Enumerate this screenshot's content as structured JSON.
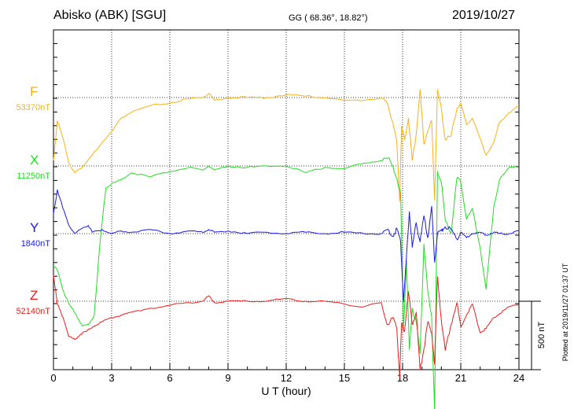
{
  "header": {
    "station": "Abisko (ABK)  [SGU]",
    "coords": "GG ( 68.36°,  18.82°)",
    "date": "2019/10/27"
  },
  "footer": {
    "plotted": "Plotted at 2019/11/27 01:37 UT"
  },
  "chart_data": {
    "type": "line",
    "title": "Abisko (ABK)  [SGU]",
    "xlabel": "U T (hour)",
    "xlim": [
      0,
      24
    ],
    "xticks": [
      "0",
      "3",
      "6",
      "9",
      "12",
      "15",
      "18",
      "21",
      "24"
    ],
    "grid": true,
    "scale_bar": {
      "label": "500 nT",
      "value_nT": 500
    },
    "series": [
      {
        "name": "F",
        "baseline_label": "53370nT",
        "baseline_nT": 53370,
        "color": "#f4b21a",
        "x": [
          0,
          0.2,
          0.5,
          0.8,
          1.1,
          1.4,
          1.7,
          2.0,
          2.5,
          3.0,
          3.5,
          4.0,
          5.0,
          6.0,
          7.0,
          7.7,
          8.0,
          8.3,
          9.0,
          10.0,
          11.0,
          12.0,
          13.0,
          14.0,
          15.0,
          16.0,
          16.9,
          17.2,
          17.5,
          17.7,
          17.85,
          17.95,
          18.1,
          18.3,
          18.5,
          18.7,
          18.9,
          19.1,
          19.3,
          19.5,
          19.65,
          19.8,
          20.0,
          20.2,
          20.5,
          20.8,
          21.0,
          21.3,
          21.6,
          22.0,
          22.3,
          22.7,
          23.0,
          23.5,
          24.0
        ],
        "values": [
          -460,
          -170,
          -300,
          -480,
          -550,
          -520,
          -470,
          -420,
          -330,
          -250,
          -150,
          -110,
          -60,
          -40,
          -10,
          0,
          30,
          -20,
          0,
          0,
          0,
          20,
          10,
          0,
          -20,
          -20,
          0,
          -40,
          -180,
          -320,
          -760,
          -210,
          -310,
          -150,
          -460,
          -270,
          60,
          -340,
          -240,
          -170,
          -750,
          60,
          -80,
          -310,
          -280,
          -80,
          -40,
          -200,
          -150,
          -300,
          -420,
          -330,
          -180,
          -110,
          -60
        ]
      },
      {
        "name": "X",
        "baseline_label": "11250nT",
        "baseline_nT": 11250,
        "color": "#22dd22",
        "x": [
          0,
          0.2,
          0.5,
          0.8,
          1.1,
          1.5,
          1.8,
          2.1,
          2.4,
          2.7,
          3.0,
          3.5,
          4.0,
          5.0,
          6.0,
          7.0,
          7.7,
          8.0,
          8.3,
          9.0,
          10.0,
          11.0,
          12.0,
          13.0,
          14.0,
          15.0,
          16.0,
          16.9,
          17.3,
          17.7,
          17.9,
          18.05,
          18.2,
          18.35,
          18.5,
          18.7,
          18.9,
          19.1,
          19.3,
          19.5,
          19.65,
          19.8,
          20.0,
          20.2,
          20.5,
          20.8,
          21.0,
          21.3,
          21.6,
          22.0,
          22.3,
          22.7,
          23.0,
          23.5,
          24.0
        ],
        "values": [
          -730,
          -760,
          -910,
          -1010,
          -1070,
          -1170,
          -1160,
          -1090,
          -560,
          -160,
          -130,
          -100,
          -50,
          -80,
          -40,
          -10,
          -30,
          0,
          -30,
          0,
          -10,
          0,
          0,
          -50,
          -10,
          -20,
          20,
          40,
          60,
          -90,
          -200,
          -1190,
          -690,
          -1340,
          -1040,
          -1140,
          -1370,
          -570,
          -920,
          -1100,
          -1790,
          -40,
          -120,
          -400,
          -490,
          -90,
          -120,
          -390,
          -310,
          -600,
          -900,
          -300,
          -100,
          -10,
          0
        ]
      },
      {
        "name": "Y",
        "baseline_label": "1840nT",
        "baseline_nT": 1840,
        "color": "#1a1ae6",
        "x": [
          0,
          0.2,
          0.5,
          0.8,
          1.1,
          1.5,
          1.8,
          2.0,
          2.5,
          3.0,
          3.5,
          4.0,
          5.0,
          6.0,
          7.0,
          7.7,
          8.0,
          8.3,
          9.0,
          10.0,
          11.0,
          12.0,
          13.0,
          14.0,
          15.0,
          16.0,
          16.9,
          17.2,
          17.5,
          17.7,
          17.9,
          18.05,
          18.2,
          18.35,
          18.5,
          18.7,
          18.9,
          19.1,
          19.3,
          19.5,
          19.65,
          19.8,
          20.0,
          20.2,
          20.5,
          20.8,
          21.0,
          21.3,
          21.6,
          22.0,
          22.3,
          22.7,
          23.0,
          23.5,
          24.0
        ],
        "values": [
          140,
          320,
          180,
          60,
          0,
          40,
          60,
          10,
          30,
          0,
          20,
          10,
          30,
          0,
          20,
          10,
          30,
          10,
          20,
          0,
          10,
          0,
          10,
          0,
          10,
          0,
          0,
          30,
          -20,
          40,
          -60,
          -500,
          -170,
          160,
          -100,
          80,
          -60,
          130,
          -30,
          200,
          -210,
          0,
          20,
          50,
          30,
          -40,
          10,
          -30,
          0,
          10,
          -10,
          10,
          0,
          0,
          20
        ]
      },
      {
        "name": "Z",
        "baseline_label": "52140nT",
        "baseline_nT": 52140,
        "color": "#ee1c1c",
        "x": [
          0,
          0.2,
          0.5,
          0.8,
          1.1,
          1.4,
          1.7,
          2.0,
          2.5,
          3.0,
          3.5,
          4.0,
          5.0,
          6.0,
          7.0,
          7.7,
          8.0,
          8.3,
          9.0,
          10.0,
          11.0,
          12.0,
          13.0,
          14.0,
          15.0,
          16.0,
          16.9,
          17.2,
          17.5,
          17.7,
          17.85,
          17.95,
          18.1,
          18.3,
          18.5,
          18.7,
          18.9,
          19.1,
          19.3,
          19.5,
          19.65,
          19.8,
          20.0,
          20.2,
          20.5,
          20.8,
          21.0,
          21.3,
          21.6,
          22.0,
          22.3,
          22.7,
          23.0,
          23.5,
          24.0
        ],
        "values": [
          190,
          -20,
          -120,
          -260,
          -280,
          -240,
          -220,
          -190,
          -150,
          -120,
          -100,
          -80,
          -50,
          -30,
          -10,
          0,
          40,
          -10,
          0,
          0,
          0,
          20,
          0,
          0,
          -20,
          -40,
          -10,
          -170,
          -120,
          -190,
          -560,
          -160,
          -220,
          70,
          -170,
          -80,
          -500,
          -350,
          -150,
          -230,
          -460,
          180,
          -140,
          -360,
          -170,
          -10,
          -190,
          -100,
          -20,
          -230,
          -200,
          -120,
          -90,
          -40,
          -20
        ]
      }
    ]
  }
}
